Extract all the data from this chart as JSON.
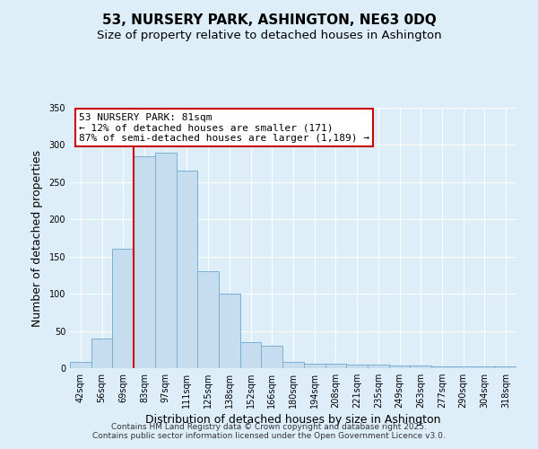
{
  "title": "53, NURSERY PARK, ASHINGTON, NE63 0DQ",
  "subtitle": "Size of property relative to detached houses in Ashington",
  "xlabel": "Distribution of detached houses by size in Ashington",
  "ylabel": "Number of detached properties",
  "categories": [
    "42sqm",
    "56sqm",
    "69sqm",
    "83sqm",
    "97sqm",
    "111sqm",
    "125sqm",
    "138sqm",
    "152sqm",
    "166sqm",
    "180sqm",
    "194sqm",
    "208sqm",
    "221sqm",
    "235sqm",
    "249sqm",
    "263sqm",
    "277sqm",
    "290sqm",
    "304sqm",
    "318sqm"
  ],
  "values": [
    8,
    40,
    160,
    285,
    290,
    265,
    130,
    100,
    35,
    30,
    8,
    6,
    6,
    5,
    5,
    4,
    4,
    3,
    3,
    2,
    3
  ],
  "bar_color": "#c6ddf0",
  "bar_edge_color": "#7ab0d4",
  "vline_color": "#cc0000",
  "vline_x_index": 3,
  "annotation_text": "53 NURSERY PARK: 81sqm\n← 12% of detached houses are smaller (171)\n87% of semi-detached houses are larger (1,189) →",
  "annotation_box_color": "#ffffff",
  "annotation_box_edge_color": "#cc0000",
  "ylim": [
    0,
    350
  ],
  "yticks": [
    0,
    50,
    100,
    150,
    200,
    250,
    300,
    350
  ],
  "background_color": "#ddeef8",
  "plot_background_color": "#ddeef8",
  "grid_color": "#ffffff",
  "footer": "Contains HM Land Registry data © Crown copyright and database right 2025.\nContains public sector information licensed under the Open Government Licence v3.0.",
  "title_fontsize": 11,
  "subtitle_fontsize": 9.5,
  "label_fontsize": 9,
  "tick_fontsize": 7,
  "annotation_fontsize": 8,
  "footer_fontsize": 6.5
}
